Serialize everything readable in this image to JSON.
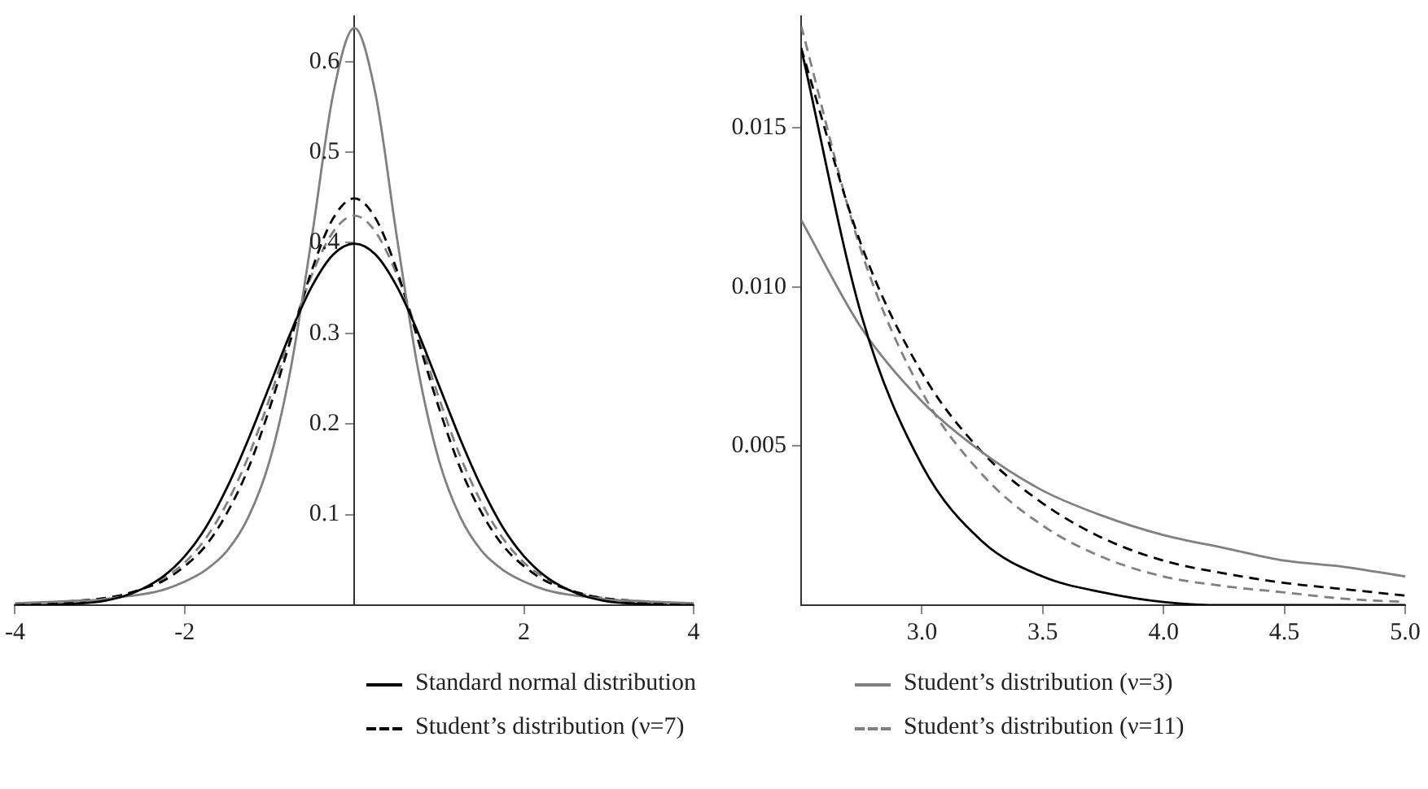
{
  "chart_data": [
    {
      "type": "line",
      "x": [
        -4,
        -3.75,
        -3.5,
        -3.25,
        -3,
        -2.75,
        -2.5,
        -2.25,
        -2,
        -1.75,
        -1.5,
        -1.25,
        -1,
        -0.75,
        -0.5,
        -0.25,
        0,
        0.25,
        0.5,
        0.75,
        1,
        1.25,
        1.5,
        1.75,
        2,
        2.25,
        2.5,
        2.75,
        3,
        3.25,
        3.5,
        3.75,
        4
      ],
      "series": [
        {
          "name": "Standard normal distribution",
          "color": "#000000",
          "line_style": "solid",
          "values": [
            0.0,
            0.0,
            0.001,
            0.002,
            0.004,
            0.009,
            0.018,
            0.032,
            0.054,
            0.086,
            0.13,
            0.183,
            0.242,
            0.301,
            0.352,
            0.387,
            0.399,
            0.387,
            0.352,
            0.301,
            0.242,
            0.183,
            0.13,
            0.086,
            0.054,
            0.032,
            0.018,
            0.009,
            0.004,
            0.002,
            0.001,
            0.0,
            0.0
          ]
        },
        {
          "name": "Student’s distribution (ν=3)",
          "color": "#808080",
          "line_style": "solid",
          "values": [
            0.002,
            0.003,
            0.004,
            0.005,
            0.006,
            0.009,
            0.012,
            0.017,
            0.026,
            0.039,
            0.06,
            0.097,
            0.159,
            0.261,
            0.407,
            0.564,
            0.637,
            0.564,
            0.407,
            0.261,
            0.159,
            0.097,
            0.06,
            0.039,
            0.026,
            0.017,
            0.012,
            0.009,
            0.006,
            0.005,
            0.004,
            0.003,
            0.002
          ]
        },
        {
          "name": "Student’s distribution (ν=7)",
          "color": "#000000",
          "line_style": "dashed",
          "values": [
            0.001,
            0.002,
            0.003,
            0.005,
            0.007,
            0.011,
            0.018,
            0.027,
            0.043,
            0.066,
            0.102,
            0.151,
            0.217,
            0.293,
            0.37,
            0.427,
            0.449,
            0.427,
            0.37,
            0.293,
            0.217,
            0.151,
            0.102,
            0.066,
            0.043,
            0.027,
            0.018,
            0.011,
            0.007,
            0.005,
            0.003,
            0.002,
            0.001
          ]
        },
        {
          "name": "Student’s distribution (ν=11)",
          "color": "#808080",
          "line_style": "dashed",
          "values": [
            0.001,
            0.002,
            0.002,
            0.004,
            0.007,
            0.011,
            0.018,
            0.03,
            0.047,
            0.074,
            0.113,
            0.164,
            0.228,
            0.299,
            0.365,
            0.412,
            0.43,
            0.412,
            0.365,
            0.299,
            0.228,
            0.164,
            0.113,
            0.074,
            0.047,
            0.03,
            0.018,
            0.011,
            0.007,
            0.004,
            0.002,
            0.002,
            0.001
          ]
        }
      ],
      "xlim": [
        -4,
        4
      ],
      "xticks": [
        -4,
        -2,
        2,
        4
      ],
      "ylim": [
        0,
        0.65
      ],
      "yticks": [
        0.1,
        0.2,
        0.3,
        0.4,
        0.5,
        0.6
      ],
      "grid": false,
      "legend": "bottom",
      "marker": "none"
    },
    {
      "type": "line",
      "x": [
        2.5,
        2.75,
        3,
        3.25,
        3.5,
        3.75,
        4,
        4.25,
        4.5,
        4.75,
        5
      ],
      "series": [
        {
          "color": "#000000",
          "line_style": "solid",
          "values": [
            0.0175,
            0.0091,
            0.0044,
            0.002,
            0.0009,
            0.0004,
            0.0001,
            0.0,
            0.0,
            0.0,
            0.0
          ]
        },
        {
          "color": "#808080",
          "line_style": "solid",
          "values": [
            0.0121,
            0.0087,
            0.0064,
            0.0048,
            0.0036,
            0.0028,
            0.0022,
            0.0018,
            0.0014,
            0.0012,
            0.0009
          ]
        },
        {
          "color": "#000000",
          "line_style": "dashed",
          "values": [
            0.0175,
            0.0113,
            0.0073,
            0.0048,
            0.0032,
            0.0021,
            0.0014,
            0.001,
            0.0007,
            0.0005,
            0.0003
          ]
        },
        {
          "color": "#808080",
          "line_style": "dashed",
          "values": [
            0.0182,
            0.0111,
            0.0067,
            0.0041,
            0.0025,
            0.0015,
            0.0009,
            0.0006,
            0.0004,
            0.0002,
            0.0001
          ]
        }
      ],
      "xlim": [
        2.5,
        5
      ],
      "xticks": [
        {
          "value": 3,
          "label": "3.0"
        },
        {
          "value": 3.5,
          "label": "3.5"
        },
        {
          "value": 4,
          "label": "4.0"
        },
        {
          "value": 4.5,
          "label": "4.5"
        },
        {
          "value": 5,
          "label": "5.0"
        }
      ],
      "ylim": [
        0,
        0.0185
      ],
      "yticks": [
        {
          "value": 0.005,
          "label": "0.005"
        },
        {
          "value": 0.01,
          "label": "0.010"
        },
        {
          "value": 0.015,
          "label": "0.015"
        }
      ],
      "grid": false,
      "marker": "none"
    }
  ]
}
